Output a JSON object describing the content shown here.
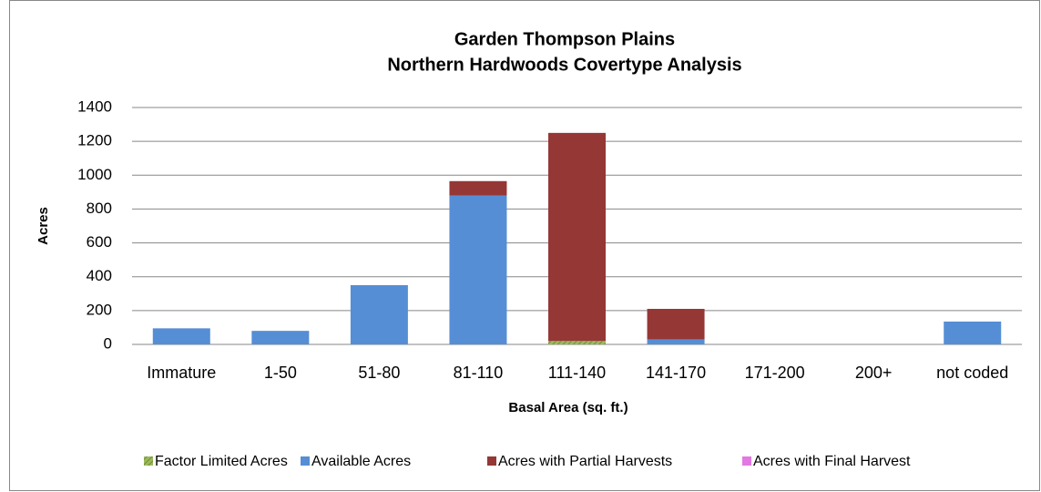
{
  "chart_data": {
    "type": "stacked_bar",
    "title": "Garden Thompson Plains",
    "subtitle": "Northern Hardwoods Covertype Analysis",
    "x_label": "Basal Area (sq. ft.)",
    "y_label": "Acres",
    "categories": [
      "Immature",
      "1-50",
      "51-80",
      "81-110",
      "111-140",
      "141-170",
      "171-200",
      "200+",
      "not coded"
    ],
    "series": [
      {
        "name": "Factor Limited Acres",
        "color": "#9bbb59",
        "values": [
          0,
          0,
          0,
          0,
          20,
          0,
          0,
          0,
          0
        ]
      },
      {
        "name": "Available Acres",
        "color": "#558ed5",
        "values": [
          95,
          80,
          350,
          880,
          0,
          30,
          0,
          0,
          135
        ]
      },
      {
        "name": "Acres with Partial Harvests",
        "color": "#953735",
        "values": [
          0,
          0,
          0,
          85,
          1230,
          180,
          0,
          0,
          0
        ]
      },
      {
        "name": "Acres with Final Harvest",
        "color": "#e377e3",
        "values": [
          0,
          0,
          0,
          0,
          0,
          0,
          0,
          0,
          0
        ]
      }
    ],
    "ylim": [
      0,
      1400
    ],
    "yticks": [
      0,
      200,
      400,
      600,
      800,
      1000,
      1200,
      1400
    ],
    "grid": true,
    "legend": "bottom"
  }
}
